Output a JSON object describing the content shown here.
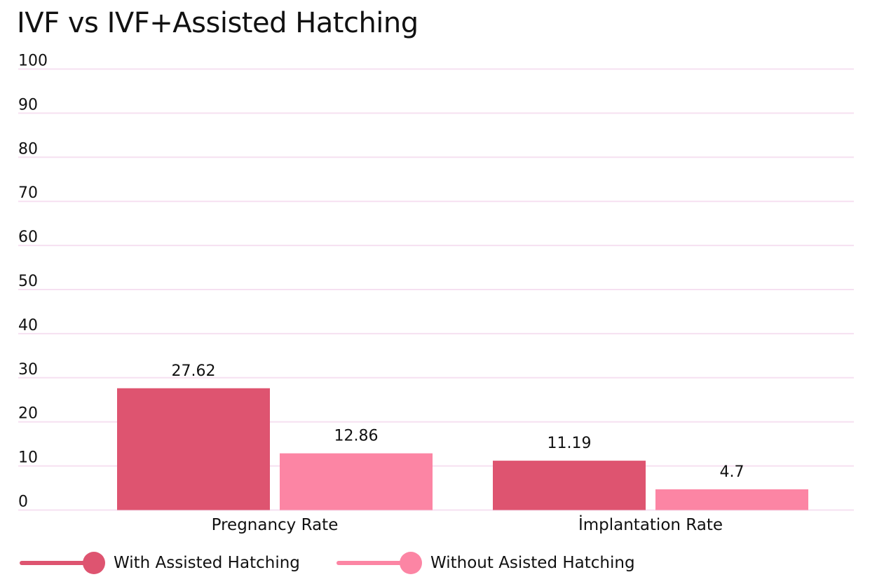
{
  "chart_data": {
    "type": "bar",
    "title": "IVF vs IVF+Assisted Hatching",
    "categories": [
      "Pregnancy Rate",
      "İmplantation Rate"
    ],
    "series": [
      {
        "name": "With Assisted Hatching",
        "values": [
          27.62,
          11.19
        ],
        "color": "#de5470"
      },
      {
        "name": "Without Asisted Hatching",
        "values": [
          12.86,
          4.7
        ],
        "color": "#fc85a4"
      }
    ],
    "data_labels": [
      [
        "27.62",
        "11.19"
      ],
      [
        "12.86",
        "4.7"
      ]
    ],
    "ylim": [
      0,
      100
    ],
    "yticks": [
      "0",
      "10",
      "20",
      "30",
      "40",
      "50",
      "60",
      "70",
      "80",
      "90",
      "100"
    ],
    "grid": true,
    "gridline_color": "#f6e0f1",
    "legend_position": "bottom-left"
  }
}
